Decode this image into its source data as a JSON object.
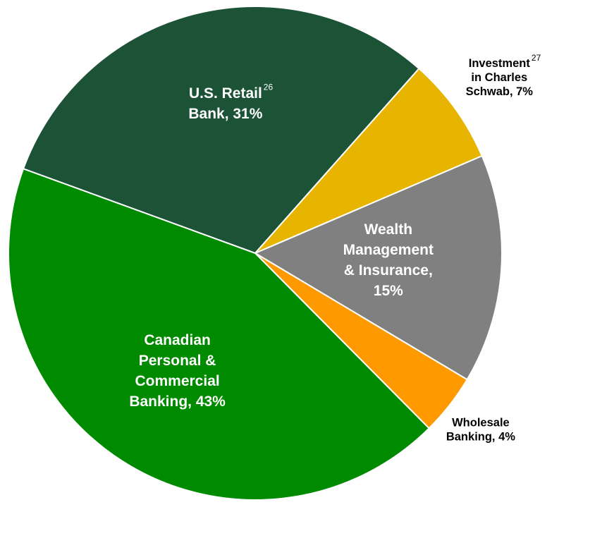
{
  "chart_data": {
    "type": "pie",
    "slices": [
      {
        "label_lines": [
          "U.S. Retail",
          "Bank, 31%"
        ],
        "footnote": "26",
        "value": 31,
        "color": "#1c5336"
      },
      {
        "label_lines": [
          "Investment",
          "in Charles",
          "Schwab, 7%"
        ],
        "footnote": "27",
        "value": 7,
        "color": "#e7b400"
      },
      {
        "label_lines": [
          "Wealth",
          "Management",
          "& Insurance,",
          "15%"
        ],
        "footnote": "",
        "value": 15,
        "color": "#808080"
      },
      {
        "label_lines": [
          "Wholesale",
          "Banking, 4%"
        ],
        "footnote": "",
        "value": 4,
        "color": "#ff9900"
      },
      {
        "label_lines": [
          "Canadian",
          "Personal &",
          "Commercial",
          "Banking, 43%"
        ],
        "footnote": "",
        "value": 43,
        "color": "#008a00"
      }
    ]
  }
}
